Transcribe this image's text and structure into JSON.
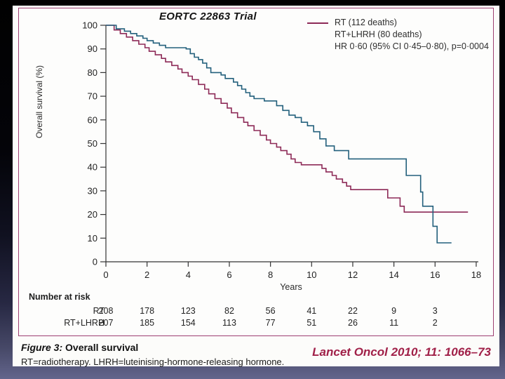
{
  "slide": {
    "title": "EORTC 22863 Trial"
  },
  "legend": {
    "entries": [
      {
        "label": "RT (112 deaths)",
        "color": "#8d2a57",
        "marker": true
      },
      {
        "label": "RT+LHRH (80 deaths)",
        "color": "#23607c",
        "marker": false
      }
    ],
    "stats": "HR 0·60 (95% CI 0·45–0·80), p=0·0004"
  },
  "chart_data": {
    "type": "line",
    "subtype": "kaplan-meier-step",
    "title": "EORTC 22863 Trial",
    "xlabel": "Years",
    "ylabel": "Overall survival (%)",
    "xlim": [
      0,
      18
    ],
    "ylim": [
      0,
      100
    ],
    "xticks": [
      0,
      2,
      4,
      6,
      8,
      10,
      12,
      14,
      16,
      18
    ],
    "yticks": [
      0,
      10,
      20,
      30,
      40,
      50,
      60,
      70,
      80,
      90,
      100
    ],
    "grid": false,
    "legend_position": "top-right",
    "annotation": "HR 0·60 (95% CI 0·45–0·80), p=0·0004",
    "series": [
      {
        "name": "RT (112 deaths)",
        "color": "#8d2a57",
        "steps": [
          [
            0,
            100
          ],
          [
            0.4,
            98
          ],
          [
            0.7,
            96.5
          ],
          [
            1,
            95
          ],
          [
            1.3,
            93.5
          ],
          [
            1.6,
            92
          ],
          [
            1.9,
            90.5
          ],
          [
            2.1,
            89
          ],
          [
            2.4,
            87.5
          ],
          [
            2.7,
            86
          ],
          [
            2.9,
            84.5
          ],
          [
            3.2,
            83
          ],
          [
            3.5,
            81.5
          ],
          [
            3.7,
            80
          ],
          [
            4,
            78.5
          ],
          [
            4.2,
            77
          ],
          [
            4.5,
            75
          ],
          [
            4.8,
            73
          ],
          [
            5,
            71
          ],
          [
            5.3,
            69
          ],
          [
            5.6,
            67
          ],
          [
            5.9,
            65
          ],
          [
            6.1,
            63
          ],
          [
            6.4,
            61
          ],
          [
            6.7,
            59
          ],
          [
            6.9,
            57.5
          ],
          [
            7.2,
            55.5
          ],
          [
            7.5,
            53.5
          ],
          [
            7.8,
            51.5
          ],
          [
            8,
            50
          ],
          [
            8.3,
            48.5
          ],
          [
            8.5,
            47
          ],
          [
            8.8,
            45.5
          ],
          [
            9,
            43.5
          ],
          [
            9.2,
            42
          ],
          [
            9.5,
            41
          ],
          [
            10.2,
            41
          ],
          [
            10.5,
            39.5
          ],
          [
            10.7,
            38
          ],
          [
            11,
            36.5
          ],
          [
            11.2,
            35
          ],
          [
            11.5,
            33.5
          ],
          [
            11.7,
            32
          ],
          [
            11.9,
            30.5
          ],
          [
            13.7,
            27
          ],
          [
            14.3,
            23.5
          ],
          [
            14.5,
            21
          ],
          [
            17.6,
            21
          ]
        ]
      },
      {
        "name": "RT+LHRH (80 deaths)",
        "color": "#23607c",
        "steps": [
          [
            0,
            100
          ],
          [
            0.5,
            98.5
          ],
          [
            0.9,
            97.5
          ],
          [
            1.2,
            96.5
          ],
          [
            1.5,
            95.5
          ],
          [
            1.8,
            94.5
          ],
          [
            2,
            93.5
          ],
          [
            2.3,
            92.5
          ],
          [
            2.6,
            91.5
          ],
          [
            2.9,
            90.5
          ],
          [
            3.9,
            90
          ],
          [
            4.1,
            88
          ],
          [
            4.3,
            86.5
          ],
          [
            4.5,
            85.5
          ],
          [
            4.7,
            84
          ],
          [
            4.9,
            82
          ],
          [
            5.1,
            80
          ],
          [
            5.6,
            79
          ],
          [
            5.8,
            77.5
          ],
          [
            6.2,
            76
          ],
          [
            6.4,
            74.5
          ],
          [
            6.6,
            73
          ],
          [
            6.8,
            71.5
          ],
          [
            7,
            70
          ],
          [
            7.2,
            69
          ],
          [
            7.7,
            68
          ],
          [
            8.3,
            66
          ],
          [
            8.6,
            64
          ],
          [
            8.9,
            62
          ],
          [
            9.2,
            61
          ],
          [
            9.5,
            59
          ],
          [
            9.8,
            57.5
          ],
          [
            10.1,
            55
          ],
          [
            10.4,
            52
          ],
          [
            10.7,
            49
          ],
          [
            11.1,
            47
          ],
          [
            11.8,
            43.5
          ],
          [
            14.6,
            36.5
          ],
          [
            15.3,
            29.5
          ],
          [
            15.4,
            23.5
          ],
          [
            15.9,
            15
          ],
          [
            16.1,
            8
          ],
          [
            16.8,
            8
          ]
        ]
      }
    ]
  },
  "number_at_risk": {
    "header": "Number at risk",
    "years": [
      0,
      2,
      4,
      6,
      8,
      10,
      12,
      14,
      16
    ],
    "rows": [
      {
        "label": "RT",
        "values": [
          208,
          178,
          123,
          82,
          56,
          41,
          22,
          9,
          3
        ]
      },
      {
        "label": "RT+LHRH",
        "values": [
          207,
          185,
          154,
          113,
          77,
          51,
          26,
          11,
          2
        ]
      }
    ]
  },
  "caption": {
    "figure_label": "Figure 3:",
    "figure_title": " Overall survival",
    "abbreviations": "RT=radiotherapy. LHRH=luteinising-hormone-releasing hormone.",
    "citation": "Lancet Oncol 2010; 11: 1066–73",
    "citation_color": "#a02048"
  },
  "colors": {
    "rt_curve": "#8d2a57",
    "rtlhrh_curve": "#23607c",
    "panel_border": "#9d3f72",
    "axis": "#333333"
  }
}
